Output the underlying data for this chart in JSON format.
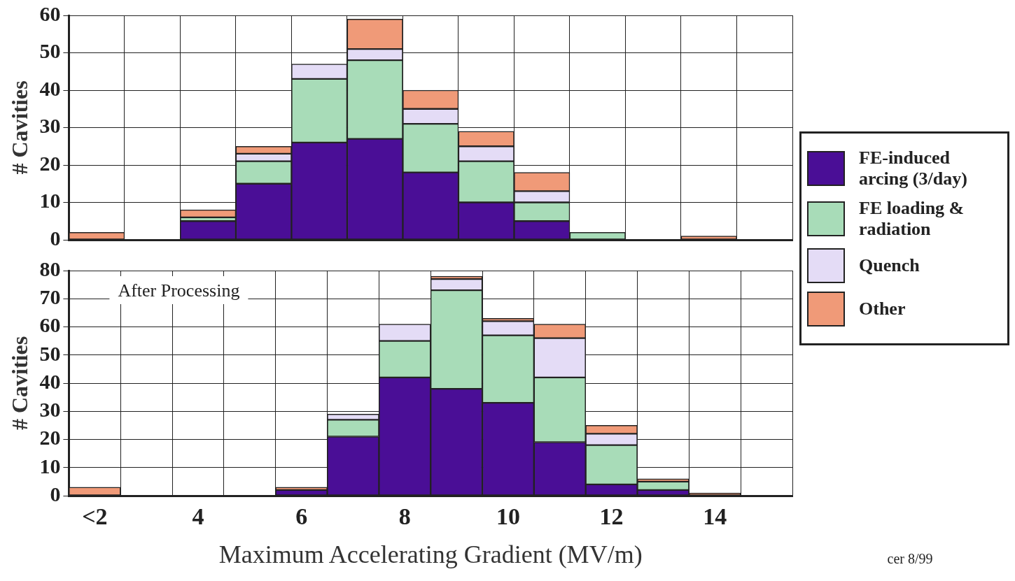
{
  "chart_data": [
    {
      "type": "bar",
      "stacked": true,
      "ylabel": "# Cavities",
      "ylim": [
        0,
        60
      ],
      "yticks": [
        0,
        10,
        20,
        30,
        40,
        50,
        60
      ],
      "grid": true,
      "legend": "right",
      "tick_labels": "y",
      "categories": [
        null,
        null,
        null,
        null,
        null,
        null,
        null,
        null,
        null,
        null,
        null,
        null,
        null
      ],
      "series": [
        {
          "name": "FE-induced arcing (3/day)",
          "color": "#4a0e96",
          "values": [
            0,
            0,
            5,
            15,
            26,
            27,
            18,
            10,
            5,
            0,
            0,
            0,
            0
          ]
        },
        {
          "name": "FE loading & radiation",
          "color": "#a8dcb8",
          "values": [
            0,
            0,
            1,
            6,
            17,
            21,
            13,
            11,
            5,
            2,
            0,
            0,
            0
          ]
        },
        {
          "name": "Quench",
          "color": "#e4dcf6",
          "values": [
            0,
            0,
            0,
            2,
            4,
            3,
            4,
            4,
            3,
            0,
            0,
            0,
            0
          ]
        },
        {
          "name": "Other",
          "color": "#f09a78",
          "values": [
            2,
            0,
            2,
            2,
            0,
            8,
            5,
            4,
            5,
            0,
            0,
            1,
            0
          ]
        }
      ]
    },
    {
      "type": "bar",
      "stacked": true,
      "ylabel": "# Cavities",
      "xlabel": "Maximum Accelerating Gradient (MV/m)",
      "ylim": [
        0,
        80
      ],
      "yticks": [
        0,
        10,
        20,
        30,
        40,
        50,
        60,
        70,
        80
      ],
      "grid": true,
      "annotations": [
        "After Processing",
        "cer 8/99"
      ],
      "categories": [
        "<2",
        null,
        "4",
        null,
        "6",
        null,
        "8",
        null,
        "10",
        null,
        "12",
        null,
        "14",
        null
      ],
      "series": [
        {
          "color": "#4a0e96",
          "values": [
            0,
            0,
            0,
            0,
            2,
            21,
            42,
            38,
            33,
            19,
            4,
            2,
            0,
            0
          ]
        },
        {
          "color": "#a8dcb8",
          "values": [
            0,
            0,
            0,
            0,
            0,
            6,
            13,
            35,
            24,
            23,
            14,
            3,
            0,
            0
          ]
        },
        {
          "color": "#e4dcf6",
          "values": [
            0,
            0,
            0,
            0,
            0,
            2,
            6,
            4,
            5,
            14,
            4,
            0,
            0,
            0
          ]
        },
        {
          "color": "#f09a78",
          "values": [
            3,
            0,
            0,
            0,
            1,
            0,
            0,
            1,
            1,
            5,
            3,
            1,
            1,
            0
          ]
        }
      ]
    }
  ]
}
